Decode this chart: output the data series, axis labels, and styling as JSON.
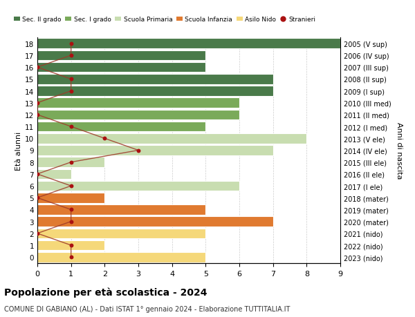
{
  "ages": [
    18,
    17,
    16,
    15,
    14,
    13,
    12,
    11,
    10,
    9,
    8,
    7,
    6,
    5,
    4,
    3,
    2,
    1,
    0
  ],
  "years": [
    "2005 (V sup)",
    "2006 (IV sup)",
    "2007 (III sup)",
    "2008 (II sup)",
    "2009 (I sup)",
    "2010 (III med)",
    "2011 (II med)",
    "2012 (I med)",
    "2013 (V ele)",
    "2014 (IV ele)",
    "2015 (III ele)",
    "2016 (II ele)",
    "2017 (I ele)",
    "2018 (mater)",
    "2019 (mater)",
    "2020 (mater)",
    "2021 (nido)",
    "2022 (nido)",
    "2023 (nido)"
  ],
  "bar_values": [
    9,
    5,
    5,
    7,
    7,
    6,
    6,
    5,
    8,
    7,
    2,
    1,
    6,
    2,
    5,
    7,
    5,
    2,
    5
  ],
  "stranieri": [
    1,
    1,
    0,
    1,
    1,
    0,
    0,
    1,
    2,
    3,
    1,
    0,
    1,
    0,
    1,
    1,
    0,
    1,
    1
  ],
  "bar_colors": [
    "#4a7a4a",
    "#4a7a4a",
    "#4a7a4a",
    "#4a7a4a",
    "#4a7a4a",
    "#7aaa5a",
    "#7aaa5a",
    "#7aaa5a",
    "#c8ddb0",
    "#c8ddb0",
    "#c8ddb0",
    "#c8ddb0",
    "#c8ddb0",
    "#e07a30",
    "#e07a30",
    "#e07a30",
    "#f5d87a",
    "#f5d87a",
    "#f5d87a"
  ],
  "legend_labels": [
    "Sec. II grado",
    "Sec. I grado",
    "Scuola Primaria",
    "Scuola Infanzia",
    "Asilo Nido",
    "Stranieri"
  ],
  "legend_colors": [
    "#4a7a4a",
    "#7aaa5a",
    "#c8ddb0",
    "#e07a30",
    "#f5d87a",
    "#aa1111"
  ],
  "stranieri_line_color": "#9e3a2a",
  "stranieri_dot_color": "#aa1111",
  "ylabel_left": "Età alunni",
  "ylabel_right": "Anni di nascita",
  "title": "Popolazione per età scolastica - 2024",
  "subtitle": "COMUNE DI GABIANO (AL) - Dati ISTAT 1° gennaio 2024 - Elaborazione TUTTITALIA.IT",
  "xlim": [
    0,
    9
  ],
  "bg_color": "#ffffff",
  "bar_edge_color": "#ffffff",
  "grid_color": "#cccccc"
}
